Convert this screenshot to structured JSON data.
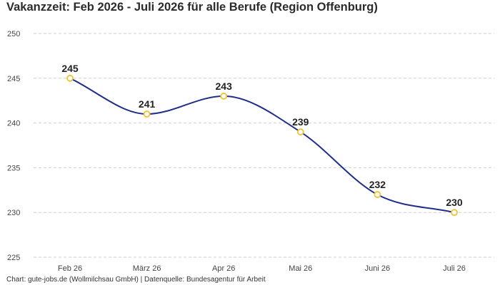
{
  "chart_data": {
    "type": "line",
    "title": "Vakanzzeit: Feb 2026 - Juli 2026 für alle Berufe (Region Offenburg)",
    "categories": [
      "Feb 26",
      "März 26",
      "Apr 26",
      "Mai 26",
      "Juni 26",
      "Juli 26"
    ],
    "series": [
      {
        "values": [
          245,
          241,
          243,
          239,
          232,
          230
        ]
      }
    ],
    "ylim": [
      225,
      250
    ],
    "yticks": [
      225,
      230,
      235,
      240,
      245,
      250
    ],
    "xlabel": "",
    "ylabel": "",
    "grid": true,
    "data_labels": true,
    "legend": "none",
    "colors": {
      "line": "#1f2e8a",
      "marker_stroke": "#f2c12e",
      "marker_fill": "#ffffff",
      "grid": "#cfcfcf"
    }
  },
  "footer": {
    "note": "Chart: gute-jobs.de (Wollmilchsau GmbH) | Datenquelle: Bundesagentur für Arbeit"
  }
}
